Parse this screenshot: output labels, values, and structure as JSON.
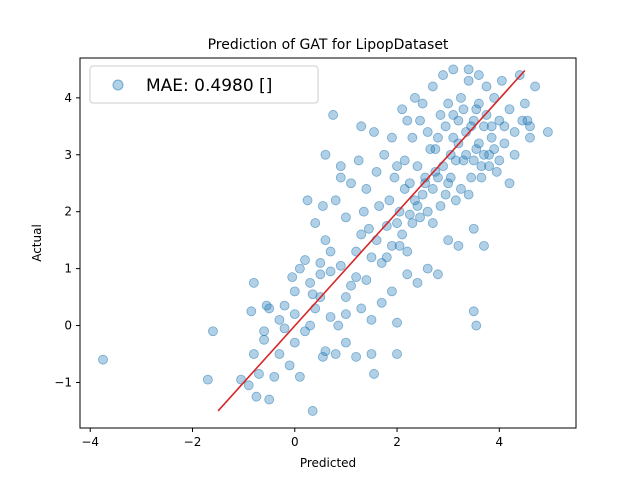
{
  "chart_data": {
    "type": "scatter",
    "title": "Prediction of GAT for LipopDataset",
    "xlabel": "Predicted",
    "ylabel": "Actual",
    "xlim": [
      -4.2,
      5.5
    ],
    "ylim": [
      -1.8,
      4.7
    ],
    "xticks": [
      -4,
      -2,
      0,
      2,
      4
    ],
    "yticks": [
      -1,
      0,
      1,
      2,
      3,
      4
    ],
    "grid": false,
    "legend_position": "top-left",
    "series": [
      {
        "name": "MAE: 0.4980 []",
        "color": "#1f77b4",
        "opacity": 0.35,
        "points": [
          [
            -3.75,
            -0.6
          ],
          [
            -1.6,
            -0.1
          ],
          [
            -1.7,
            -0.95
          ],
          [
            -1.05,
            -0.95
          ],
          [
            -0.9,
            -1.05
          ],
          [
            -0.75,
            -1.25
          ],
          [
            -0.5,
            -1.3
          ],
          [
            -0.7,
            -0.85
          ],
          [
            -0.4,
            -0.9
          ],
          [
            -0.3,
            -0.5
          ],
          [
            -0.8,
            -0.5
          ],
          [
            -0.6,
            -0.25
          ],
          [
            -0.5,
            0.3
          ],
          [
            -0.55,
            0.35
          ],
          [
            -0.2,
            0.35
          ],
          [
            -0.1,
            -0.7
          ],
          [
            0.1,
            -0.9
          ],
          [
            0.35,
            -1.5
          ],
          [
            0.0,
            -0.3
          ],
          [
            -0.2,
            -0.05
          ],
          [
            0.0,
            0.2
          ],
          [
            0.2,
            -0.1
          ],
          [
            0.3,
            0.0
          ],
          [
            0.4,
            0.3
          ],
          [
            0.55,
            -0.55
          ],
          [
            0.6,
            -0.45
          ],
          [
            0.8,
            -0.5
          ],
          [
            1.0,
            -0.3
          ],
          [
            1.2,
            -0.55
          ],
          [
            1.5,
            -0.5
          ],
          [
            1.55,
            -0.85
          ],
          [
            2.0,
            -0.5
          ],
          [
            2.0,
            0.05
          ],
          [
            3.5,
            0.25
          ],
          [
            3.55,
            0.0
          ],
          [
            -0.8,
            0.75
          ],
          [
            -0.05,
            0.85
          ],
          [
            0.1,
            1.0
          ],
          [
            0.2,
            1.15
          ],
          [
            0.35,
            0.55
          ],
          [
            0.5,
            0.9
          ],
          [
            0.6,
            1.5
          ],
          [
            0.7,
            1.3
          ],
          [
            0.75,
            3.7
          ],
          [
            0.7,
            0.95
          ],
          [
            0.9,
            1.05
          ],
          [
            1.0,
            0.5
          ],
          [
            1.1,
            0.7
          ],
          [
            1.2,
            0.85
          ],
          [
            1.3,
            1.6
          ],
          [
            1.4,
            0.8
          ],
          [
            1.5,
            1.2
          ],
          [
            1.6,
            1.5
          ],
          [
            1.7,
            1.1
          ],
          [
            1.8,
            1.75
          ],
          [
            1.85,
            2.2
          ],
          [
            1.9,
            1.4
          ],
          [
            2.0,
            1.8
          ],
          [
            2.05,
            2.0
          ],
          [
            2.1,
            1.6
          ],
          [
            2.15,
            2.4
          ],
          [
            2.2,
            1.3
          ],
          [
            2.25,
            2.5
          ],
          [
            2.3,
            1.8
          ],
          [
            2.35,
            2.2
          ],
          [
            2.4,
            2.8
          ],
          [
            2.45,
            1.9
          ],
          [
            2.5,
            2.3
          ],
          [
            2.55,
            2.6
          ],
          [
            2.6,
            2.0
          ],
          [
            2.65,
            3.1
          ],
          [
            2.7,
            2.4
          ],
          [
            2.75,
            2.7
          ],
          [
            2.8,
            3.3
          ],
          [
            2.85,
            2.1
          ],
          [
            2.9,
            2.8
          ],
          [
            2.95,
            3.5
          ],
          [
            3.0,
            2.5
          ],
          [
            3.05,
            3.0
          ],
          [
            3.1,
            3.7
          ],
          [
            3.15,
            2.2
          ],
          [
            3.2,
            3.2
          ],
          [
            3.25,
            4.0
          ],
          [
            3.3,
            2.9
          ],
          [
            3.35,
            3.4
          ],
          [
            3.4,
            4.3
          ],
          [
            3.45,
            2.6
          ],
          [
            3.5,
            3.6
          ],
          [
            3.55,
            3.1
          ],
          [
            3.6,
            3.9
          ],
          [
            3.65,
            2.8
          ],
          [
            3.7,
            3.5
          ],
          [
            3.75,
            4.2
          ],
          [
            3.8,
            3.0
          ],
          [
            3.85,
            3.3
          ],
          [
            3.9,
            4.0
          ],
          [
            3.95,
            2.7
          ],
          [
            4.0,
            3.6
          ],
          [
            4.05,
            4.3
          ],
          [
            4.1,
            3.2
          ],
          [
            4.2,
            2.5
          ],
          [
            4.3,
            3.4
          ],
          [
            4.4,
            4.4
          ],
          [
            4.5,
            3.9
          ],
          [
            4.6,
            3.3
          ],
          [
            4.7,
            4.2
          ],
          [
            4.55,
            3.6
          ],
          [
            4.95,
            3.4
          ],
          [
            4.6,
            3.5
          ],
          [
            3.5,
            1.7
          ],
          [
            3.7,
            1.4
          ],
          [
            3.2,
            1.4
          ],
          [
            3.0,
            1.5
          ],
          [
            2.8,
            0.9
          ],
          [
            2.6,
            1.0
          ],
          [
            2.4,
            0.75
          ],
          [
            2.2,
            0.9
          ],
          [
            1.9,
            0.6
          ],
          [
            1.7,
            0.4
          ],
          [
            1.5,
            0.1
          ],
          [
            1.3,
            0.3
          ],
          [
            1.0,
            0.2
          ],
          [
            0.85,
            0.0
          ],
          [
            0.7,
            0.15
          ],
          [
            0.5,
            0.5
          ],
          [
            0.3,
            0.75
          ],
          [
            0.0,
            0.6
          ],
          [
            -0.3,
            0.1
          ],
          [
            -0.6,
            -0.1
          ],
          [
            -0.85,
            0.25
          ],
          [
            0.4,
            1.8
          ],
          [
            0.55,
            2.1
          ],
          [
            0.8,
            2.2
          ],
          [
            0.9,
            2.6
          ],
          [
            1.1,
            2.5
          ],
          [
            1.25,
            2.9
          ],
          [
            1.4,
            2.4
          ],
          [
            1.6,
            2.7
          ],
          [
            1.75,
            3.0
          ],
          [
            1.9,
            3.3
          ],
          [
            2.0,
            2.8
          ],
          [
            2.2,
            3.6
          ],
          [
            2.1,
            3.8
          ],
          [
            2.5,
            3.9
          ],
          [
            2.35,
            4.0
          ],
          [
            2.7,
            4.2
          ],
          [
            2.9,
            4.4
          ],
          [
            3.1,
            4.5
          ],
          [
            3.4,
            4.5
          ],
          [
            3.6,
            4.4
          ],
          [
            1.3,
            3.5
          ],
          [
            1.55,
            3.4
          ],
          [
            0.6,
            3.0
          ],
          [
            0.9,
            2.8
          ],
          [
            0.25,
            2.2
          ],
          [
            0.5,
            1.1
          ],
          [
            1.0,
            1.9
          ],
          [
            1.2,
            1.3
          ],
          [
            1.35,
            2.0
          ],
          [
            1.45,
            1.7
          ],
          [
            1.65,
            2.1
          ],
          [
            1.8,
            1.2
          ],
          [
            1.95,
            2.6
          ],
          [
            2.05,
            1.4
          ],
          [
            2.15,
            2.9
          ],
          [
            2.25,
            1.95
          ],
          [
            2.3,
            3.3
          ],
          [
            2.4,
            2.1
          ],
          [
            2.45,
            3.6
          ],
          [
            2.55,
            2.5
          ],
          [
            2.6,
            3.4
          ],
          [
            2.7,
            1.8
          ],
          [
            2.75,
            3.1
          ],
          [
            2.8,
            2.6
          ],
          [
            2.85,
            3.7
          ],
          [
            2.95,
            2.3
          ],
          [
            3.0,
            3.9
          ],
          [
            3.05,
            2.6
          ],
          [
            3.1,
            3.3
          ],
          [
            3.15,
            2.9
          ],
          [
            3.2,
            3.6
          ],
          [
            3.25,
            2.4
          ],
          [
            3.3,
            3.8
          ],
          [
            3.35,
            3.0
          ],
          [
            3.4,
            2.3
          ],
          [
            3.45,
            3.5
          ],
          [
            3.5,
            2.9
          ],
          [
            3.55,
            3.8
          ],
          [
            3.6,
            3.2
          ],
          [
            3.65,
            2.6
          ],
          [
            3.7,
            3.0
          ],
          [
            3.75,
            3.7
          ],
          [
            3.8,
            2.8
          ],
          [
            3.85,
            3.5
          ],
          [
            3.9,
            3.1
          ],
          [
            4.0,
            2.9
          ],
          [
            4.1,
            3.5
          ],
          [
            4.2,
            3.8
          ],
          [
            4.3,
            3.0
          ],
          [
            4.45,
            3.6
          ]
        ]
      }
    ],
    "fit_line": {
      "color": "#d62728",
      "x": [
        -1.5,
        4.5
      ],
      "y": [
        -1.5,
        4.48
      ]
    }
  }
}
